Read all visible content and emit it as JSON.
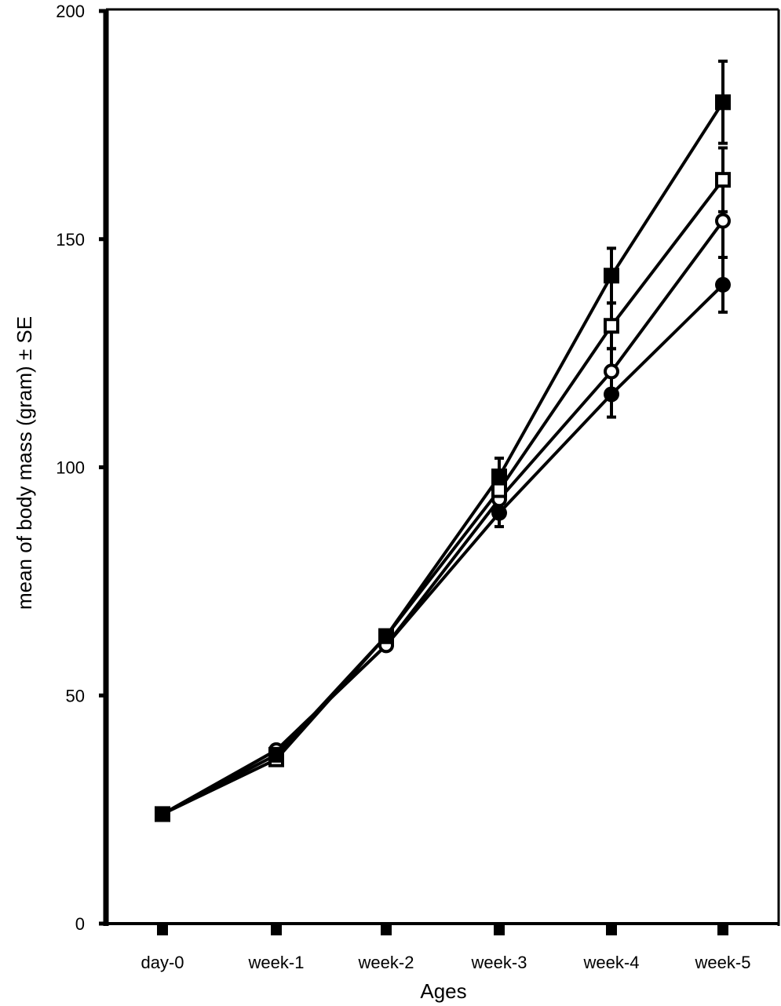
{
  "chart_data": {
    "type": "line",
    "title": "",
    "xlabel": "Ages",
    "ylabel": "mean of body mass (gram) ± SE",
    "categories": [
      "day-0",
      "week-1",
      "week-2",
      "week-3",
      "week-4",
      "week-5"
    ],
    "ylim": [
      0,
      200
    ],
    "yticks": [
      0,
      50,
      100,
      150,
      200
    ],
    "grid": false,
    "legend": "none",
    "series": [
      {
        "marker": "filled-square",
        "values": [
          24,
          37,
          63,
          98,
          142,
          180
        ],
        "error": [
          0,
          0,
          1,
          4,
          6,
          9
        ]
      },
      {
        "marker": "open-square",
        "values": [
          24,
          36,
          63,
          95,
          131,
          163
        ],
        "error": [
          0,
          0,
          1,
          3,
          5,
          7
        ]
      },
      {
        "marker": "open-circle",
        "values": [
          24,
          38,
          61,
          93,
          121,
          154
        ],
        "error": [
          0,
          0,
          1,
          3,
          5,
          8
        ]
      },
      {
        "marker": "filled-circle",
        "values": [
          24,
          38,
          61,
          90,
          116,
          140
        ],
        "error": [
          0,
          0,
          1,
          3,
          5,
          6
        ]
      }
    ]
  }
}
